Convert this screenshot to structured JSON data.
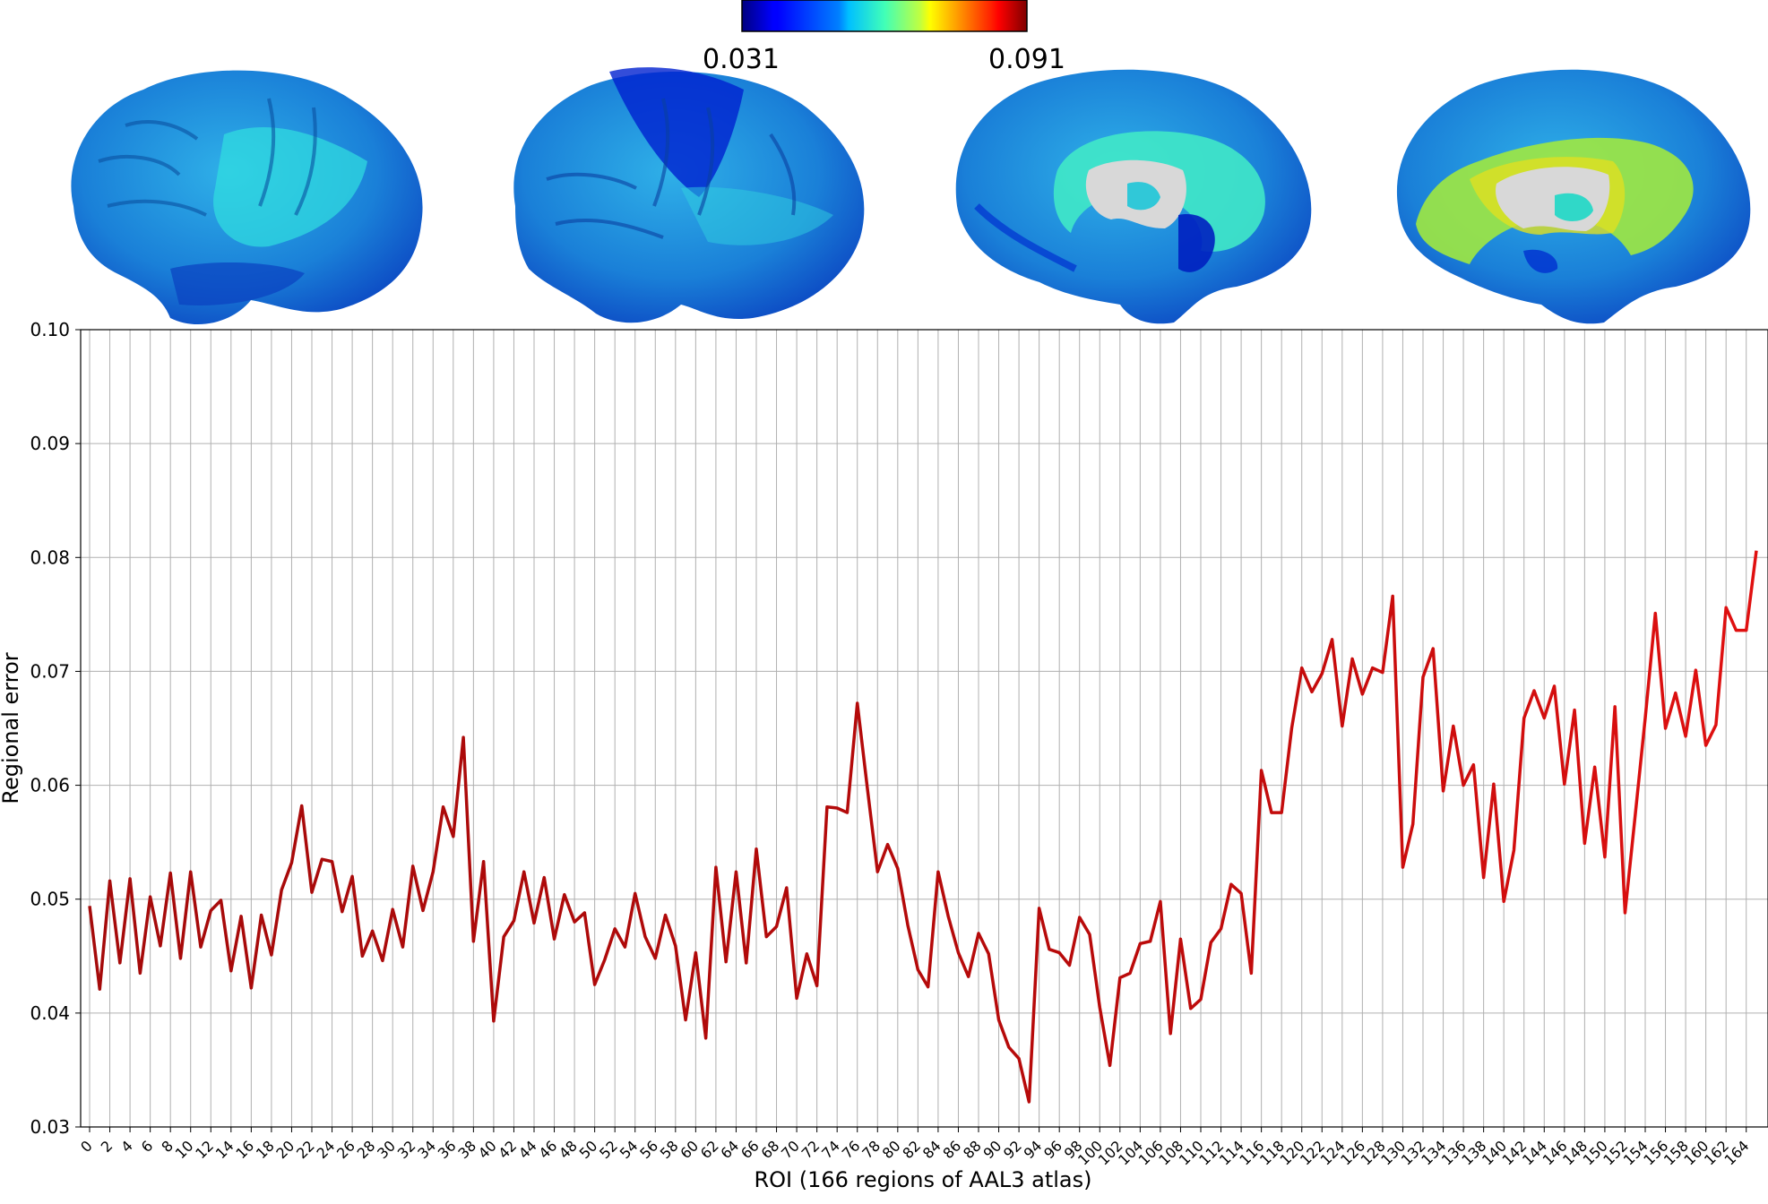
{
  "colorbar": {
    "min_label": "0.031",
    "max_label": "0.091",
    "colormap": "jet"
  },
  "brain_views": [
    {
      "name": "left-lateral"
    },
    {
      "name": "right-lateral"
    },
    {
      "name": "left-medial"
    },
    {
      "name": "right-medial"
    }
  ],
  "chart_data": {
    "type": "line",
    "title": "",
    "xlabel": "ROI (166 regions of AAL3 atlas)",
    "ylabel": "Regional error",
    "ylim": [
      0.03,
      0.1
    ],
    "xlim": [
      0,
      165
    ],
    "yticks": [
      0.03,
      0.04,
      0.05,
      0.06,
      0.07,
      0.08,
      0.09,
      0.1
    ],
    "ytick_labels": [
      "0.03",
      "0.04",
      "0.05",
      "0.06",
      "0.07",
      "0.08",
      "0.09",
      "0.10"
    ],
    "xtick_step": 2,
    "grid": true,
    "line_color_start": "#a50a0a",
    "line_color_end": "#e01010",
    "x": [
      0,
      1,
      2,
      3,
      4,
      5,
      6,
      7,
      8,
      9,
      10,
      11,
      12,
      13,
      14,
      15,
      16,
      17,
      18,
      19,
      20,
      21,
      22,
      23,
      24,
      25,
      26,
      27,
      28,
      29,
      30,
      31,
      32,
      33,
      34,
      35,
      36,
      37,
      38,
      39,
      40,
      41,
      42,
      43,
      44,
      45,
      46,
      47,
      48,
      49,
      50,
      51,
      52,
      53,
      54,
      55,
      56,
      57,
      58,
      59,
      60,
      61,
      62,
      63,
      64,
      65,
      66,
      67,
      68,
      69,
      70,
      71,
      72,
      73,
      74,
      75,
      76,
      77,
      78,
      79,
      80,
      81,
      82,
      83,
      84,
      85,
      86,
      87,
      88,
      89,
      90,
      91,
      92,
      93,
      94,
      95,
      96,
      97,
      98,
      99,
      100,
      101,
      102,
      103,
      104,
      105,
      106,
      107,
      108,
      109,
      110,
      111,
      112,
      113,
      114,
      115,
      116,
      117,
      118,
      119,
      120,
      121,
      122,
      123,
      124,
      125,
      126,
      127,
      128,
      129,
      130,
      131,
      132,
      133,
      134,
      135,
      136,
      137,
      138,
      139,
      140,
      141,
      142,
      143,
      144,
      145,
      146,
      147,
      148,
      149,
      150,
      151,
      152,
      153,
      154,
      155,
      156,
      157,
      158,
      159,
      160,
      161,
      162,
      163,
      164,
      165
    ],
    "values": [
      0.0494,
      0.0421,
      0.0516,
      0.0444,
      0.0518,
      0.0435,
      0.0502,
      0.0459,
      0.0523,
      0.0448,
      0.0524,
      0.0458,
      0.049,
      0.0499,
      0.0437,
      0.0485,
      0.0422,
      0.0486,
      0.0451,
      0.0508,
      0.0532,
      0.0582,
      0.0506,
      0.0535,
      0.0533,
      0.0489,
      0.052,
      0.045,
      0.0472,
      0.0446,
      0.0491,
      0.0458,
      0.0529,
      0.049,
      0.0524,
      0.0581,
      0.0555,
      0.0642,
      0.0463,
      0.0533,
      0.0393,
      0.0467,
      0.0481,
      0.0524,
      0.0479,
      0.0519,
      0.0465,
      0.0504,
      0.048,
      0.0488,
      0.0425,
      0.0447,
      0.0474,
      0.0458,
      0.0505,
      0.0467,
      0.0448,
      0.0486,
      0.0459,
      0.0394,
      0.0453,
      0.0378,
      0.0528,
      0.0445,
      0.0524,
      0.0444,
      0.0544,
      0.0467,
      0.0476,
      0.051,
      0.0413,
      0.0452,
      0.0424,
      0.0581,
      0.058,
      0.0576,
      0.0672,
      0.0597,
      0.0524,
      0.0548,
      0.0527,
      0.0477,
      0.0438,
      0.0423,
      0.0524,
      0.0485,
      0.0453,
      0.0432,
      0.047,
      0.0452,
      0.0394,
      0.037,
      0.036,
      0.0322,
      0.0492,
      0.0456,
      0.0453,
      0.0442,
      0.0484,
      0.0469,
      0.0405,
      0.0354,
      0.0431,
      0.0435,
      0.0461,
      0.0463,
      0.0498,
      0.0382,
      0.0465,
      0.0404,
      0.0412,
      0.0462,
      0.0474,
      0.0513,
      0.0505,
      0.0435,
      0.0613,
      0.0576,
      0.0576,
      0.065,
      0.0703,
      0.0682,
      0.0698,
      0.0728,
      0.0652,
      0.0711,
      0.068,
      0.0703,
      0.0699,
      0.0766,
      0.0528,
      0.0566,
      0.0695,
      0.072,
      0.0595,
      0.0652,
      0.06,
      0.0618,
      0.0519,
      0.0601,
      0.0498,
      0.0543,
      0.0659,
      0.0683,
      0.0659,
      0.0687,
      0.0601,
      0.0666,
      0.0549,
      0.0616,
      0.0537,
      0.0669,
      0.0488,
      0.0573,
      0.0659,
      0.0751,
      0.065,
      0.0681,
      0.0643,
      0.0701,
      0.0635,
      0.0653,
      0.0756,
      0.0736,
      0.0736,
      0.0806
    ]
  }
}
